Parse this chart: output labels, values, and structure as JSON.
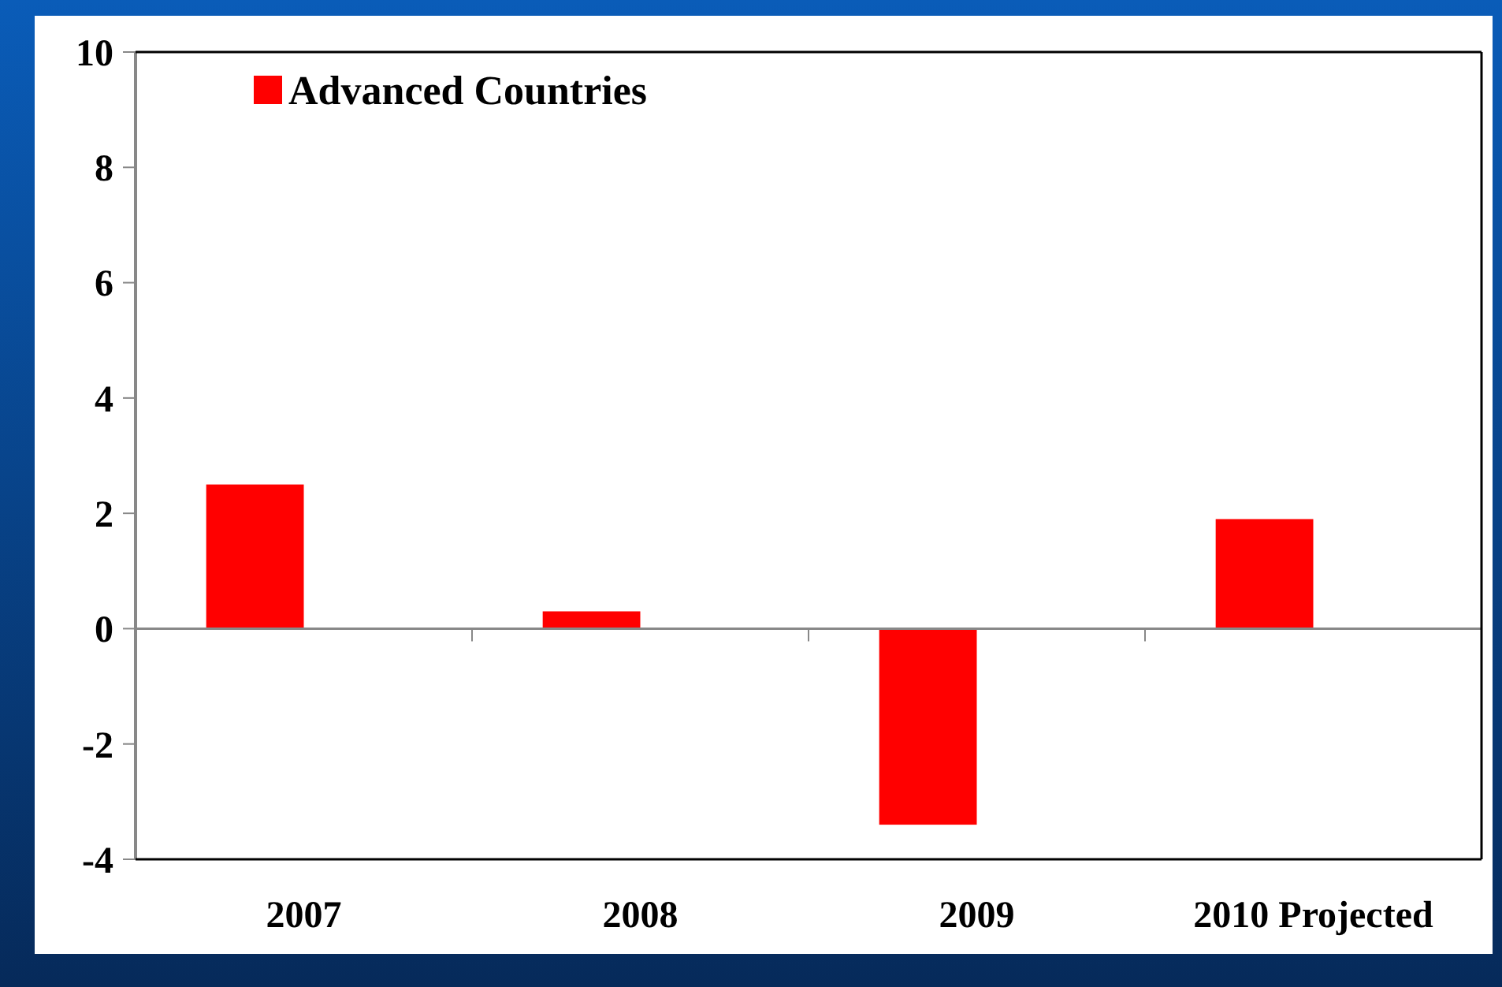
{
  "chart_data": {
    "type": "bar",
    "categories": [
      "2007",
      "2008",
      "2009",
      "2010 Projected"
    ],
    "series": [
      {
        "name": "Advanced Countries",
        "color": "#ff0000",
        "values": [
          2.5,
          0.3,
          -3.4,
          1.9
        ]
      }
    ],
    "ylim": [
      -4,
      10
    ],
    "yticks": [
      -4,
      -2,
      0,
      2,
      4,
      6,
      8,
      10
    ],
    "legend": "top left"
  }
}
